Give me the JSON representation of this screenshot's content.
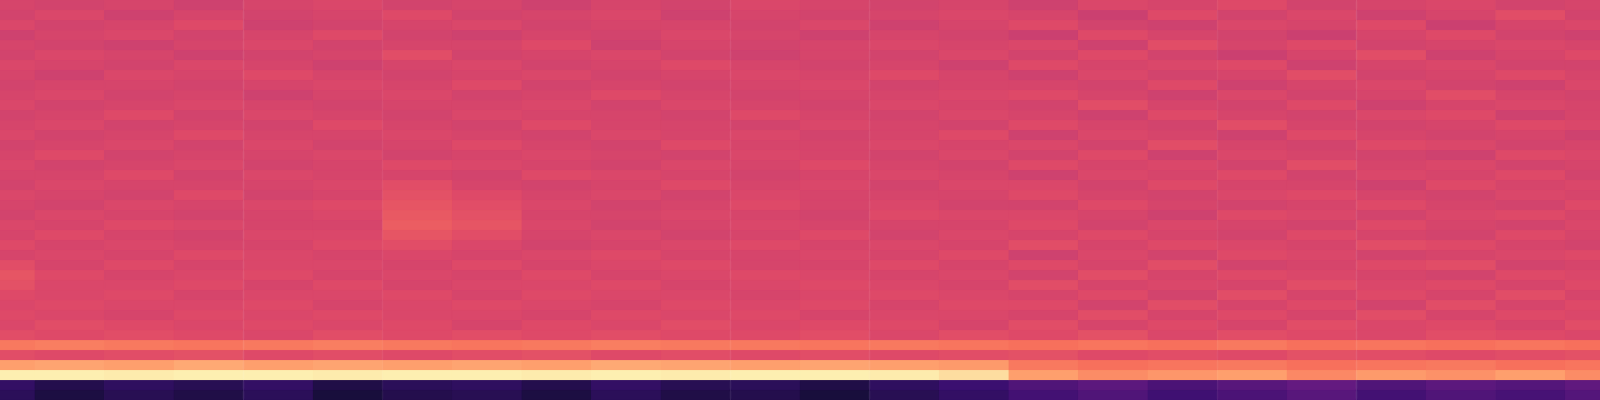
{
  "chart_data": {
    "type": "heatmap",
    "color": "magma",
    "zlim": [
      0,
      1
    ],
    "tick_labels": false,
    "cells": [
      [
        0.58,
        0.57,
        0.58,
        0.56,
        0.58,
        0.59,
        0.57,
        0.58,
        0.56,
        0.58,
        0.57,
        0.59,
        0.58,
        0.57,
        0.58,
        0.56,
        0.59,
        0.58,
        0.6,
        0.57,
        0.58,
        0.59,
        0.57,
        0.58
      ],
      [
        0.57,
        0.59,
        0.56,
        0.58,
        0.57,
        0.58,
        0.6,
        0.57,
        0.58,
        0.59,
        0.56,
        0.58,
        0.57,
        0.58,
        0.59,
        0.58,
        0.55,
        0.6,
        0.57,
        0.59,
        0.56,
        0.58,
        0.61,
        0.57
      ],
      [
        0.59,
        0.57,
        0.58,
        0.6,
        0.56,
        0.57,
        0.58,
        0.59,
        0.57,
        0.58,
        0.58,
        0.57,
        0.59,
        0.56,
        0.58,
        0.6,
        0.57,
        0.56,
        0.59,
        0.58,
        0.6,
        0.55,
        0.58,
        0.59
      ],
      [
        0.56,
        0.58,
        0.59,
        0.57,
        0.58,
        0.6,
        0.57,
        0.56,
        0.58,
        0.57,
        0.59,
        0.58,
        0.56,
        0.58,
        0.57,
        0.55,
        0.6,
        0.58,
        0.57,
        0.55,
        0.58,
        0.6,
        0.57,
        0.56
      ],
      [
        0.58,
        0.57,
        0.56,
        0.58,
        0.59,
        0.57,
        0.58,
        0.58,
        0.6,
        0.56,
        0.58,
        0.57,
        0.58,
        0.59,
        0.58,
        0.59,
        0.56,
        0.61,
        0.58,
        0.6,
        0.57,
        0.58,
        0.59,
        0.58
      ],
      [
        0.57,
        0.59,
        0.58,
        0.56,
        0.57,
        0.58,
        0.61,
        0.57,
        0.58,
        0.59,
        0.57,
        0.56,
        0.58,
        0.57,
        0.59,
        0.57,
        0.6,
        0.57,
        0.55,
        0.58,
        0.61,
        0.56,
        0.58,
        0.6
      ],
      [
        0.59,
        0.58,
        0.57,
        0.59,
        0.58,
        0.56,
        0.58,
        0.59,
        0.57,
        0.58,
        0.6,
        0.58,
        0.57,
        0.58,
        0.56,
        0.6,
        0.58,
        0.59,
        0.6,
        0.56,
        0.58,
        0.59,
        0.57,
        0.57
      ],
      [
        0.58,
        0.56,
        0.59,
        0.58,
        0.6,
        0.58,
        0.57,
        0.58,
        0.59,
        0.57,
        0.58,
        0.59,
        0.58,
        0.6,
        0.58,
        0.56,
        0.59,
        0.57,
        0.58,
        0.61,
        0.57,
        0.58,
        0.6,
        0.58
      ],
      [
        0.57,
        0.58,
        0.58,
        0.57,
        0.58,
        0.59,
        0.58,
        0.6,
        0.57,
        0.58,
        0.57,
        0.58,
        0.59,
        0.57,
        0.58,
        0.58,
        0.57,
        0.6,
        0.56,
        0.58,
        0.59,
        0.57,
        0.56,
        0.59
      ],
      [
        0.58,
        0.59,
        0.57,
        0.58,
        0.56,
        0.58,
        0.59,
        0.57,
        0.58,
        0.6,
        0.58,
        0.57,
        0.58,
        0.58,
        0.59,
        0.6,
        0.58,
        0.56,
        0.59,
        0.57,
        0.58,
        0.61,
        0.58,
        0.57
      ],
      [
        0.59,
        0.57,
        0.58,
        0.59,
        0.58,
        0.57,
        0.58,
        0.58,
        0.59,
        0.57,
        0.59,
        0.58,
        0.57,
        0.59,
        0.58,
        0.57,
        0.61,
        0.58,
        0.57,
        0.6,
        0.56,
        0.58,
        0.59,
        0.58
      ],
      [
        0.57,
        0.58,
        0.6,
        0.57,
        0.59,
        0.58,
        0.57,
        0.59,
        0.58,
        0.58,
        0.57,
        0.6,
        0.58,
        0.57,
        0.59,
        0.58,
        0.56,
        0.6,
        0.58,
        0.57,
        0.59,
        0.6,
        0.56,
        0.58
      ],
      [
        0.58,
        0.59,
        0.57,
        0.58,
        0.57,
        0.6,
        0.58,
        0.57,
        0.6,
        0.58,
        0.58,
        0.57,
        0.59,
        0.58,
        0.57,
        0.6,
        0.58,
        0.57,
        0.61,
        0.58,
        0.57,
        0.58,
        0.6,
        0.59
      ],
      [
        0.59,
        0.57,
        0.58,
        0.6,
        0.58,
        0.58,
        0.59,
        0.58,
        0.57,
        0.59,
        0.58,
        0.59,
        0.57,
        0.58,
        0.6,
        0.56,
        0.59,
        0.58,
        0.56,
        0.6,
        0.58,
        0.57,
        0.58,
        0.56
      ],
      [
        0.57,
        0.58,
        0.59,
        0.57,
        0.59,
        0.57,
        0.58,
        0.6,
        0.58,
        0.57,
        0.6,
        0.58,
        0.58,
        0.59,
        0.58,
        0.59,
        0.57,
        0.61,
        0.58,
        0.57,
        0.6,
        0.59,
        0.57,
        0.58
      ],
      [
        0.58,
        0.6,
        0.57,
        0.58,
        0.58,
        0.59,
        0.57,
        0.58,
        0.59,
        0.58,
        0.57,
        0.59,
        0.58,
        0.57,
        0.59,
        0.57,
        0.6,
        0.56,
        0.59,
        0.58,
        0.57,
        0.56,
        0.6,
        0.59
      ],
      [
        0.59,
        0.57,
        0.58,
        0.59,
        0.57,
        0.58,
        0.6,
        0.59,
        0.58,
        0.57,
        0.59,
        0.58,
        0.6,
        0.58,
        0.57,
        0.6,
        0.58,
        0.59,
        0.57,
        0.61,
        0.58,
        0.59,
        0.57,
        0.58
      ],
      [
        0.58,
        0.58,
        0.6,
        0.57,
        0.59,
        0.58,
        0.58,
        0.57,
        0.6,
        0.59,
        0.58,
        0.57,
        0.58,
        0.59,
        0.58,
        0.56,
        0.59,
        0.58,
        0.6,
        0.57,
        0.59,
        0.58,
        0.6,
        0.57
      ],
      [
        0.57,
        0.59,
        0.58,
        0.58,
        0.58,
        0.59,
        0.61,
        0.58,
        0.57,
        0.58,
        0.6,
        0.58,
        0.59,
        0.57,
        0.59,
        0.59,
        0.57,
        0.6,
        0.58,
        0.58,
        0.56,
        0.6,
        0.58,
        0.59
      ],
      [
        0.59,
        0.58,
        0.57,
        0.6,
        0.57,
        0.58,
        0.62,
        0.6,
        0.58,
        0.59,
        0.57,
        0.59,
        0.58,
        0.58,
        0.58,
        0.6,
        0.58,
        0.57,
        0.59,
        0.6,
        0.58,
        0.57,
        0.59,
        0.58
      ],
      [
        0.58,
        0.57,
        0.59,
        0.58,
        0.59,
        0.6,
        0.63,
        0.61,
        0.59,
        0.57,
        0.58,
        0.6,
        0.58,
        0.59,
        0.57,
        0.57,
        0.6,
        0.58,
        0.57,
        0.58,
        0.6,
        0.58,
        0.57,
        0.6
      ],
      [
        0.57,
        0.59,
        0.58,
        0.57,
        0.58,
        0.59,
        0.64,
        0.62,
        0.58,
        0.58,
        0.59,
        0.58,
        0.57,
        0.6,
        0.59,
        0.59,
        0.58,
        0.56,
        0.6,
        0.59,
        0.57,
        0.59,
        0.6,
        0.58
      ],
      [
        0.59,
        0.58,
        0.6,
        0.59,
        0.58,
        0.58,
        0.65,
        0.63,
        0.59,
        0.57,
        0.58,
        0.59,
        0.58,
        0.58,
        0.58,
        0.6,
        0.57,
        0.59,
        0.58,
        0.57,
        0.6,
        0.58,
        0.57,
        0.59
      ],
      [
        0.58,
        0.6,
        0.58,
        0.57,
        0.59,
        0.59,
        0.63,
        0.61,
        0.58,
        0.59,
        0.57,
        0.58,
        0.6,
        0.57,
        0.59,
        0.58,
        0.6,
        0.58,
        0.57,
        0.6,
        0.58,
        0.57,
        0.6,
        0.58
      ],
      [
        0.6,
        0.58,
        0.59,
        0.58,
        0.58,
        0.6,
        0.61,
        0.59,
        0.57,
        0.58,
        0.59,
        0.6,
        0.58,
        0.59,
        0.58,
        0.61,
        0.58,
        0.6,
        0.59,
        0.58,
        0.61,
        0.6,
        0.58,
        0.57
      ],
      [
        0.58,
        0.59,
        0.58,
        0.6,
        0.59,
        0.58,
        0.59,
        0.58,
        0.59,
        0.6,
        0.58,
        0.58,
        0.59,
        0.58,
        0.6,
        0.56,
        0.59,
        0.57,
        0.6,
        0.59,
        0.57,
        0.58,
        0.59,
        0.6
      ],
      [
        0.61,
        0.58,
        0.6,
        0.58,
        0.59,
        0.59,
        0.58,
        0.6,
        0.58,
        0.59,
        0.6,
        0.58,
        0.58,
        0.6,
        0.58,
        0.6,
        0.58,
        0.61,
        0.57,
        0.58,
        0.6,
        0.61,
        0.57,
        0.58
      ],
      [
        0.63,
        0.6,
        0.58,
        0.59,
        0.6,
        0.58,
        0.59,
        0.58,
        0.6,
        0.58,
        0.59,
        0.6,
        0.59,
        0.58,
        0.59,
        0.57,
        0.61,
        0.58,
        0.6,
        0.59,
        0.58,
        0.57,
        0.6,
        0.59
      ],
      [
        0.62,
        0.59,
        0.59,
        0.6,
        0.58,
        0.6,
        0.58,
        0.59,
        0.59,
        0.6,
        0.58,
        0.59,
        0.6,
        0.59,
        0.58,
        0.61,
        0.58,
        0.59,
        0.58,
        0.61,
        0.59,
        0.6,
        0.58,
        0.6
      ],
      [
        0.6,
        0.59,
        0.6,
        0.58,
        0.59,
        0.59,
        0.6,
        0.58,
        0.6,
        0.59,
        0.59,
        0.58,
        0.59,
        0.6,
        0.59,
        0.58,
        0.6,
        0.57,
        0.61,
        0.58,
        0.6,
        0.58,
        0.61,
        0.58
      ],
      [
        0.59,
        0.6,
        0.59,
        0.59,
        0.6,
        0.58,
        0.59,
        0.6,
        0.59,
        0.58,
        0.6,
        0.59,
        0.6,
        0.58,
        0.6,
        0.6,
        0.57,
        0.61,
        0.58,
        0.6,
        0.57,
        0.61,
        0.58,
        0.6
      ],
      [
        0.6,
        0.59,
        0.58,
        0.6,
        0.59,
        0.6,
        0.59,
        0.59,
        0.58,
        0.6,
        0.59,
        0.6,
        0.58,
        0.59,
        0.59,
        0.58,
        0.61,
        0.58,
        0.6,
        0.58,
        0.61,
        0.58,
        0.6,
        0.59
      ],
      [
        0.59,
        0.61,
        0.6,
        0.59,
        0.6,
        0.59,
        0.6,
        0.58,
        0.6,
        0.59,
        0.61,
        0.59,
        0.6,
        0.6,
        0.58,
        0.61,
        0.58,
        0.6,
        0.58,
        0.61,
        0.59,
        0.6,
        0.58,
        0.61
      ],
      [
        0.61,
        0.6,
        0.61,
        0.6,
        0.59,
        0.61,
        0.6,
        0.61,
        0.6,
        0.61,
        0.6,
        0.6,
        0.61,
        0.59,
        0.61,
        0.6,
        0.62,
        0.59,
        0.61,
        0.6,
        0.59,
        0.61,
        0.6,
        0.59
      ],
      [
        0.72,
        0.73,
        0.72,
        0.71,
        0.72,
        0.73,
        0.72,
        0.71,
        0.72,
        0.73,
        0.72,
        0.72,
        0.71,
        0.72,
        0.71,
        0.7,
        0.71,
        0.7,
        0.72,
        0.7,
        0.71,
        0.7,
        0.71,
        0.7
      ],
      [
        0.61,
        0.6,
        0.61,
        0.62,
        0.6,
        0.61,
        0.6,
        0.61,
        0.62,
        0.6,
        0.61,
        0.6,
        0.61,
        0.6,
        0.61,
        0.62,
        0.6,
        0.61,
        0.6,
        0.62,
        0.61,
        0.6,
        0.61,
        0.62
      ],
      [
        0.8,
        0.81,
        0.8,
        0.82,
        0.8,
        0.81,
        0.8,
        0.81,
        0.8,
        0.82,
        0.81,
        0.8,
        0.81,
        0.8,
        0.79,
        0.72,
        0.7,
        0.71,
        0.72,
        0.7,
        0.71,
        0.72,
        0.7,
        0.71
      ],
      [
        0.97,
        0.97,
        0.96,
        0.97,
        0.97,
        0.96,
        0.97,
        0.97,
        0.96,
        0.97,
        0.96,
        0.97,
        0.97,
        0.96,
        0.93,
        0.8,
        0.76,
        0.78,
        0.8,
        0.75,
        0.79,
        0.77,
        0.8,
        0.76
      ],
      [
        0.18,
        0.14,
        0.17,
        0.15,
        0.18,
        0.13,
        0.16,
        0.17,
        0.14,
        0.18,
        0.15,
        0.16,
        0.13,
        0.17,
        0.2,
        0.25,
        0.28,
        0.24,
        0.27,
        0.3,
        0.25,
        0.28,
        0.26,
        0.29
      ],
      [
        0.16,
        0.12,
        0.15,
        0.13,
        0.16,
        0.11,
        0.14,
        0.15,
        0.12,
        0.16,
        0.13,
        0.14,
        0.11,
        0.15,
        0.18,
        0.22,
        0.25,
        0.21,
        0.24,
        0.27,
        0.22,
        0.25,
        0.23,
        0.26
      ]
    ]
  }
}
